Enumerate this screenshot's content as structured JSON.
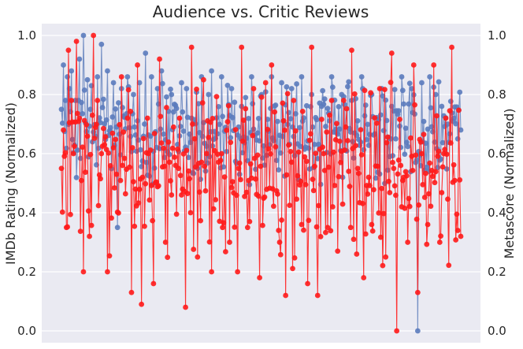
{
  "chart_data": {
    "type": "line",
    "title": "Audience vs. Critic Reviews",
    "xlabel": "",
    "ylabel_left": "IMDb Rating (Normalized)",
    "ylabel_right": "Metascore (Normalized)",
    "ylim": [
      -0.04,
      1.04
    ],
    "yticks": [
      "0.0",
      "0.2",
      "0.4",
      "0.6",
      "0.8",
      "1.0"
    ],
    "grid": true,
    "x_count": 400,
    "series": [
      {
        "axis": "left",
        "color": "#6a87c0",
        "marker_color": "#5b7bbd"
      },
      {
        "axis": "right",
        "color": "#ff2020",
        "marker_color": "#ff1a1a"
      }
    ],
    "anchors_imdb": [
      [
        0,
        0.75
      ],
      [
        2,
        0.9
      ],
      [
        4,
        0.78
      ],
      [
        6,
        0.86
      ],
      [
        8,
        0.82
      ],
      [
        10,
        0.88
      ],
      [
        14,
        0.78
      ],
      [
        18,
        0.92
      ],
      [
        22,
        1.0
      ],
      [
        26,
        0.85
      ],
      [
        30,
        0.83
      ],
      [
        36,
        0.86
      ],
      [
        40,
        0.97
      ],
      [
        46,
        0.88
      ],
      [
        52,
        0.84
      ],
      [
        56,
        0.35
      ],
      [
        60,
        0.82
      ],
      [
        66,
        0.86
      ],
      [
        72,
        0.8
      ],
      [
        78,
        0.84
      ],
      [
        84,
        0.94
      ],
      [
        90,
        0.86
      ],
      [
        96,
        0.82
      ],
      [
        100,
        0.88
      ],
      [
        110,
        0.8
      ],
      [
        120,
        0.84
      ],
      [
        125,
        0.82
      ],
      [
        130,
        0.72
      ],
      [
        140,
        0.86
      ],
      [
        150,
        0.88
      ],
      [
        160,
        0.86
      ],
      [
        170,
        0.82
      ],
      [
        180,
        0.76
      ],
      [
        190,
        0.86
      ],
      [
        200,
        0.8
      ],
      [
        210,
        0.86
      ],
      [
        220,
        0.84
      ],
      [
        230,
        0.82
      ],
      [
        240,
        0.86
      ],
      [
        250,
        0.8
      ],
      [
        260,
        0.76
      ],
      [
        270,
        0.86
      ],
      [
        280,
        0.8
      ],
      [
        290,
        0.78
      ],
      [
        300,
        0.86
      ],
      [
        310,
        0.8
      ],
      [
        320,
        0.82
      ],
      [
        330,
        0.76
      ],
      [
        340,
        0.86
      ],
      [
        350,
        0.82
      ],
      [
        356,
        0.0
      ],
      [
        360,
        0.84
      ],
      [
        368,
        0.86
      ],
      [
        374,
        0.8
      ],
      [
        380,
        0.76
      ],
      [
        386,
        0.7
      ],
      [
        392,
        0.72
      ],
      [
        399,
        0.68
      ]
    ],
    "anchors_meta": [
      [
        0,
        0.55
      ],
      [
        2,
        0.68
      ],
      [
        5,
        0.35
      ],
      [
        7,
        0.95
      ],
      [
        10,
        0.78
      ],
      [
        12,
        0.6
      ],
      [
        15,
        0.98
      ],
      [
        18,
        0.72
      ],
      [
        22,
        0.2
      ],
      [
        28,
        0.32
      ],
      [
        32,
        1.0
      ],
      [
        36,
        0.78
      ],
      [
        40,
        0.6
      ],
      [
        46,
        0.2
      ],
      [
        52,
        0.62
      ],
      [
        60,
        0.86
      ],
      [
        66,
        0.72
      ],
      [
        70,
        0.13
      ],
      [
        76,
        0.9
      ],
      [
        80,
        0.09
      ],
      [
        86,
        0.72
      ],
      [
        92,
        0.16
      ],
      [
        98,
        0.92
      ],
      [
        104,
        0.3
      ],
      [
        110,
        0.46
      ],
      [
        118,
        0.72
      ],
      [
        124,
        0.08
      ],
      [
        130,
        0.96
      ],
      [
        136,
        0.25
      ],
      [
        142,
        0.85
      ],
      [
        150,
        0.2
      ],
      [
        160,
        0.6
      ],
      [
        168,
        0.3
      ],
      [
        176,
        0.2
      ],
      [
        180,
        0.96
      ],
      [
        186,
        0.35
      ],
      [
        192,
        0.82
      ],
      [
        198,
        0.18
      ],
      [
        204,
        0.84
      ],
      [
        210,
        0.9
      ],
      [
        218,
        0.3
      ],
      [
        224,
        0.12
      ],
      [
        232,
        0.78
      ],
      [
        240,
        0.36
      ],
      [
        246,
        0.16
      ],
      [
        250,
        0.96
      ],
      [
        256,
        0.12
      ],
      [
        262,
        0.6
      ],
      [
        270,
        0.78
      ],
      [
        276,
        0.27
      ],
      [
        282,
        0.78
      ],
      [
        290,
        0.95
      ],
      [
        296,
        0.55
      ],
      [
        302,
        0.18
      ],
      [
        310,
        0.36
      ],
      [
        318,
        0.82
      ],
      [
        324,
        0.25
      ],
      [
        330,
        0.94
      ],
      [
        335,
        0.0
      ],
      [
        340,
        0.42
      ],
      [
        346,
        0.3
      ],
      [
        352,
        0.9
      ],
      [
        356,
        0.13
      ],
      [
        360,
        0.6
      ],
      [
        366,
        0.36
      ],
      [
        372,
        0.9
      ],
      [
        378,
        0.3
      ],
      [
        384,
        0.72
      ],
      [
        390,
        0.96
      ],
      [
        396,
        0.34
      ],
      [
        399,
        0.32
      ]
    ]
  }
}
